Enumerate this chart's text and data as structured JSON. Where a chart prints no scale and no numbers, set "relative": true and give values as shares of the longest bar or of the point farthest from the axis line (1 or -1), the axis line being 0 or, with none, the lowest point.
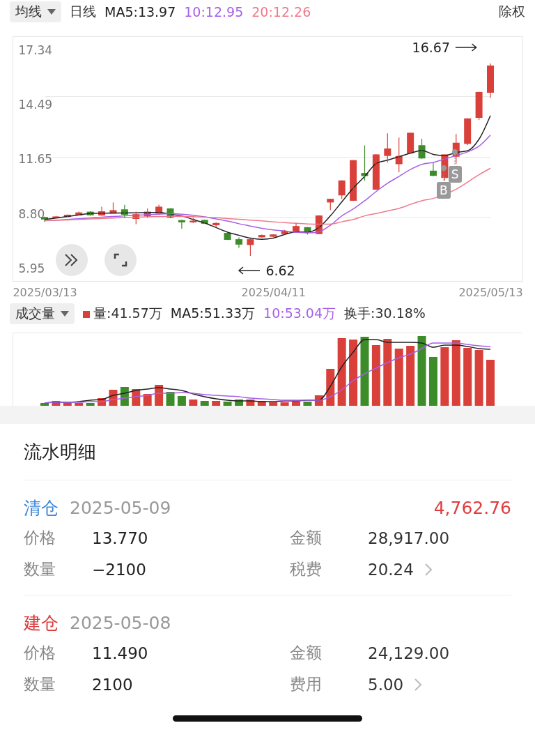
{
  "chart_data": [
    {
      "type": "candlestick",
      "categories": [
        "2025/03/13",
        null,
        null,
        null,
        null,
        null,
        null,
        null,
        null,
        null,
        null,
        null,
        null,
        null,
        null,
        null,
        null,
        null,
        null,
        null,
        "2025/04/11",
        null,
        null,
        null,
        null,
        null,
        null,
        null,
        null,
        null,
        null,
        null,
        null,
        null,
        null,
        null,
        null,
        null,
        null,
        "2025/05/13"
      ],
      "ohlc": [
        [
          8.65,
          8.67,
          8.4,
          8.52
        ],
        [
          8.59,
          8.71,
          8.56,
          8.68
        ],
        [
          8.65,
          8.79,
          8.62,
          8.77
        ],
        [
          8.74,
          8.93,
          8.72,
          8.89
        ],
        [
          8.93,
          8.95,
          8.72,
          8.74
        ],
        [
          8.73,
          9.19,
          8.71,
          8.95
        ],
        [
          8.83,
          9.41,
          8.8,
          9.01
        ],
        [
          9.05,
          9.29,
          8.61,
          8.77
        ],
        [
          8.55,
          8.93,
          8.28,
          8.8
        ],
        [
          8.68,
          9.1,
          8.61,
          8.93
        ],
        [
          8.83,
          9.29,
          8.8,
          9.19
        ],
        [
          9.1,
          9.11,
          8.59,
          8.61
        ],
        [
          8.49,
          8.5,
          8.04,
          8.37
        ],
        [
          8.37,
          8.61,
          8.34,
          8.46
        ],
        [
          8.5,
          8.51,
          8.29,
          8.3
        ],
        [
          8.22,
          8.37,
          8.12,
          8.34
        ],
        [
          7.82,
          7.83,
          7.45,
          7.46
        ],
        [
          7.49,
          7.59,
          7.04,
          7.21
        ],
        [
          7.19,
          7.52,
          6.62,
          7.49
        ],
        [
          7.59,
          7.73,
          7.57,
          7.71
        ],
        [
          7.62,
          7.75,
          7.6,
          7.74
        ],
        [
          7.76,
          7.98,
          7.74,
          7.92
        ],
        [
          7.88,
          8.31,
          7.87,
          8.18
        ],
        [
          8.12,
          8.13,
          7.74,
          7.88
        ],
        [
          7.76,
          8.74,
          7.75,
          8.73
        ],
        [
          9.41,
          9.6,
          9.01,
          9.6
        ],
        [
          9.78,
          10.57,
          9.6,
          10.56
        ],
        [
          9.5,
          11.63,
          9.49,
          11.62
        ],
        [
          10.95,
          12.39,
          10.55,
          10.79
        ],
        [
          10.08,
          11.93,
          10.07,
          11.92
        ],
        [
          11.84,
          13.02,
          11.5,
          12.23
        ],
        [
          11.41,
          12.8,
          10.99,
          11.84
        ],
        [
          11.98,
          13.06,
          11.97,
          13.05
        ],
        [
          12.4,
          12.74,
          11.68,
          11.71
        ],
        [
          11.07,
          11.47,
          10.79,
          10.8
        ],
        [
          10.69,
          11.93,
          10.55,
          11.92
        ],
        [
          11.8,
          12.98,
          11.44,
          12.53
        ],
        [
          12.47,
          13.81,
          12.4,
          13.8
        ],
        [
          13.83,
          15.19,
          13.71,
          15.18
        ],
        [
          15.14,
          16.67,
          14.87,
          16.56
        ]
      ],
      "colors": [
        "#3d8c2a",
        "#d9403a",
        "#d9403a",
        "#d9403a",
        "#3d8c2a",
        "#d9403a",
        "#d9403a",
        "#3d8c2a",
        "#d9403a",
        "#d9403a",
        "#d9403a",
        "#3d8c2a",
        "#3d8c2a",
        "#d9403a",
        "#3d8c2a",
        "#d9403a",
        "#3d8c2a",
        "#3d8c2a",
        "#d9403a",
        "#d9403a",
        "#d9403a",
        "#d9403a",
        "#d9403a",
        "#3d8c2a",
        "#d9403a",
        "#d9403a",
        "#d9403a",
        "#d9403a",
        "#3d8c2a",
        "#d9403a",
        "#d9403a",
        "#d9403a",
        "#d9403a",
        "#3d8c2a",
        "#3d8c2a",
        "#d9403a",
        "#d9403a",
        "#d9403a",
        "#d9403a",
        "#d9403a"
      ],
      "series": [
        {
          "type": "line",
          "name": "MA5:13.97",
          "color": "#222222",
          "values": [
            8.52,
            8.6,
            8.68,
            8.76,
            8.83,
            8.85,
            8.86,
            8.86,
            8.87,
            8.88,
            8.89,
            8.8,
            8.71,
            8.52,
            8.34,
            8.1,
            7.86,
            7.7,
            7.55,
            7.49,
            7.55,
            7.74,
            7.88,
            7.86,
            8.1,
            8.71,
            9.44,
            10.16,
            10.77,
            11.44,
            11.62,
            11.8,
            11.98,
            12.13,
            11.92,
            11.86,
            12.02,
            12.11,
            12.71,
            13.95
          ]
        },
        {
          "type": "line",
          "name": "10:12.95",
          "color": "#a65fe8",
          "values": [
            8.46,
            8.49,
            8.52,
            8.56,
            8.6,
            8.64,
            8.68,
            8.71,
            8.74,
            8.77,
            8.8,
            8.82,
            8.8,
            8.74,
            8.66,
            8.55,
            8.44,
            8.3,
            8.18,
            8.06,
            7.98,
            7.92,
            7.86,
            7.82,
            7.88,
            8.22,
            8.71,
            9.07,
            9.5,
            9.98,
            10.41,
            10.77,
            11.13,
            11.4,
            11.5,
            11.68,
            11.86,
            12.05,
            12.35,
            12.93
          ]
        },
        {
          "type": "line",
          "name": "20:12.26",
          "color": "#f07a8a",
          "values": [
            8.46,
            8.48,
            8.5,
            8.52,
            8.55,
            8.57,
            8.6,
            8.62,
            8.64,
            8.66,
            8.68,
            8.69,
            8.69,
            8.67,
            8.64,
            8.61,
            8.57,
            8.53,
            8.49,
            8.45,
            8.4,
            8.36,
            8.32,
            8.29,
            8.28,
            8.28,
            8.4,
            8.52,
            8.71,
            8.83,
            8.97,
            9.1,
            9.31,
            9.5,
            9.62,
            null,
            10.1,
            null,
            10.86,
            11.2
          ]
        }
      ],
      "ylim": [
        5.31,
        18.09
      ],
      "yticks": [
        5.95,
        {
          "value": 8.65,
          "label": null
        },
        {
          "value": 8.8,
          "label": "8.80"
        },
        11.65,
        {
          "value": 11.8,
          "label": null
        },
        14.49,
        {
          "value": 14.96,
          "label": null
        },
        17.34
      ],
      "grid": true,
      "legend": "top",
      "annotations": [
        "均线",
        "日线",
        "除权",
        "16.67",
        "6.62",
        {
          "text": "B",
          "y": 11.21
        },
        {
          "text": "S",
          "y": 12.04
        }
      ]
    },
    {
      "type": "bar",
      "relative": true,
      "categories": [
        null,
        null,
        null,
        null,
        null,
        null,
        null,
        null,
        null,
        null,
        null,
        null,
        null,
        null,
        null,
        null,
        null,
        null,
        null,
        null,
        null,
        null,
        null,
        null,
        null,
        null,
        null,
        null,
        null,
        null,
        null,
        null,
        null,
        null,
        null,
        null,
        null,
        null,
        null,
        null
      ],
      "series": [
        {
          "name": "量:41.57万",
          "colors": [
            "#3d8c2a",
            "#d9403a",
            "#d9403a",
            "#d9403a",
            "#3d8c2a",
            "#d9403a",
            "#d9403a",
            "#3d8c2a",
            "#d9403a",
            "#d9403a",
            "#d9403a",
            "#3d8c2a",
            "#3d8c2a",
            "#d9403a",
            "#3d8c2a",
            "#d9403a",
            "#3d8c2a",
            "#3d8c2a",
            "#d9403a",
            "#d9403a",
            "#d9403a",
            "#d9403a",
            "#d9403a",
            "#3d8c2a",
            "#d9403a",
            "#d9403a",
            "#d9403a",
            "#d9403a",
            "#3d8c2a",
            "#d9403a",
            "#d9403a",
            "#d9403a",
            "#d9403a",
            "#3d8c2a",
            "#3d8c2a",
            "#d9403a",
            "#d9403a",
            "#d9403a",
            "#d9403a",
            "#d9403a"
          ],
          "values": [
            0.04,
            0.07,
            0.04,
            0.04,
            0.04,
            0.11,
            0.23,
            0.27,
            0.24,
            0.17,
            0.3,
            0.2,
            0.14,
            0.09,
            0.07,
            0.07,
            0.06,
            0.09,
            0.09,
            0.07,
            0.05,
            0.05,
            0.06,
            0.06,
            0.15,
            0.53,
            0.97,
            0.95,
            0.99,
            0.87,
            0.96,
            0.82,
            0.86,
            1,
            0.7,
            0.84,
            0.94,
            0.83,
            0.8,
            0.66
          ]
        },
        {
          "type": "line",
          "name": "MA5:51.33万",
          "color": "#222222",
          "values": [
            0.04,
            0.05,
            0.05,
            0.06,
            0.08,
            0.09,
            0.15,
            0.18,
            0.22,
            0.24,
            0.26,
            0.24,
            0.22,
            0.17,
            0.13,
            0.1,
            0.08,
            0.07,
            0.07,
            0.06,
            0.06,
            0.07,
            0.07,
            0.08,
            0.08,
            0.28,
            0.56,
            0.77,
            0.95,
            0.95,
            0.91,
            0.91,
            0.91,
            0.9,
            0.84,
            0.87,
            0.87,
            0.85,
            0.82,
            0.81
          ]
        },
        {
          "type": "line",
          "name": "10:53.04万",
          "color": "#a65fe8",
          "values": [
            0.04,
            0.05,
            0.05,
            0.05,
            0.06,
            0.06,
            0.09,
            0.11,
            0.13,
            0.15,
            0.18,
            0.18,
            0.19,
            0.18,
            0.16,
            0.15,
            0.14,
            0.13,
            0.11,
            0.1,
            0.09,
            0.08,
            0.08,
            0.08,
            0.08,
            0.13,
            0.23,
            0.36,
            0.46,
            0.54,
            0.62,
            0.69,
            0.74,
            0.82,
            0.9,
            0.9,
            0.9,
            0.88,
            0.86,
            0.85
          ]
        }
      ],
      "legend": "top",
      "annotations": [
        "成交量",
        "换手:30.18%"
      ]
    },
    {
      "type": "other",
      "title": "流水明细",
      "annotations": [
        "清仓",
        "2025-05-09",
        "价格",
        "13.770",
        "金额",
        "28,917.00",
        "数量",
        "−2100",
        "税费",
        "20.24",
        "建仓",
        "2025-05-08",
        "价格",
        "11.490",
        "金额",
        "24,129.00",
        "数量",
        "2100",
        "费用",
        "5.00",
        "4,762.76"
      ]
    }
  ]
}
